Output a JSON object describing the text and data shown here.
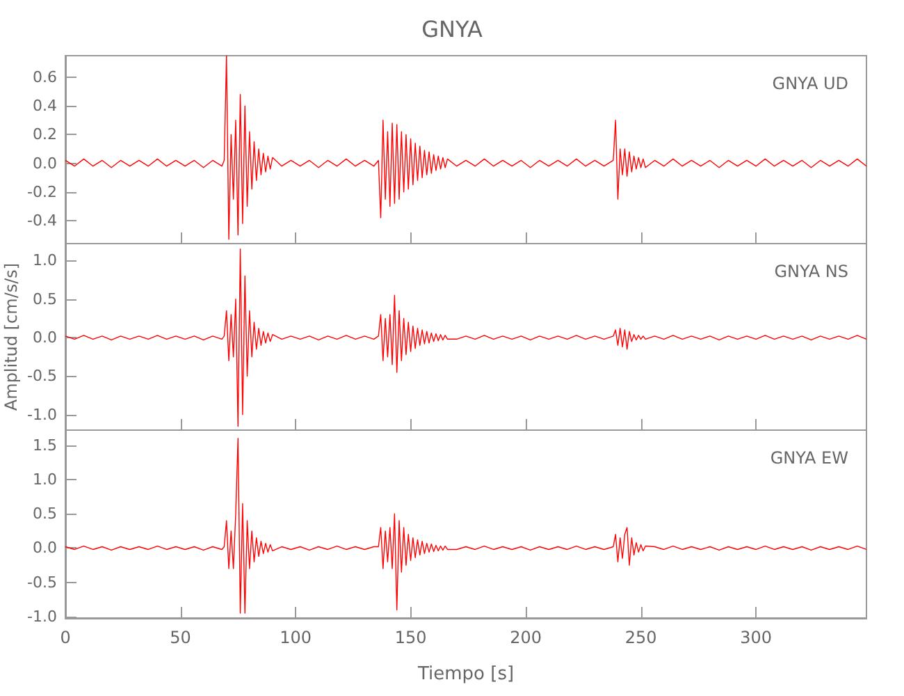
{
  "chart_data": [
    {
      "type": "line",
      "title": "GNYA",
      "annotations": [
        "GNYA UD"
      ],
      "xlim": [
        0,
        348
      ],
      "xticks": [
        0,
        50,
        100,
        150,
        200,
        250,
        300
      ],
      "ylim": [
        -0.56,
        0.75
      ],
      "yticks": [
        -0.4,
        -0.2,
        {
          "value": 0,
          "label": "0.0"
        },
        0.2,
        0.4,
        0.6
      ],
      "tick_labels": "y",
      "x": [
        0,
        4,
        8,
        12,
        16,
        20,
        24,
        28,
        32,
        36,
        40,
        44,
        48,
        52,
        56,
        60,
        64,
        68,
        69,
        70,
        71,
        72,
        73,
        74,
        75,
        76,
        77,
        78,
        79,
        80,
        81,
        82,
        83,
        84,
        85,
        86,
        87,
        88,
        89,
        90,
        94,
        98,
        102,
        106,
        110,
        114,
        118,
        122,
        126,
        130,
        134,
        136,
        137,
        138,
        139,
        140,
        141,
        142,
        143,
        144,
        145,
        146,
        147,
        148,
        149,
        150,
        151,
        152,
        153,
        154,
        155,
        156,
        157,
        158,
        159,
        160,
        161,
        162,
        163,
        164,
        165,
        166,
        170,
        174,
        178,
        182,
        186,
        190,
        194,
        198,
        202,
        206,
        210,
        214,
        218,
        222,
        226,
        230,
        234,
        238,
        239,
        240,
        241,
        242,
        243,
        244,
        245,
        246,
        247,
        248,
        249,
        250,
        251,
        252,
        256,
        260,
        264,
        268,
        272,
        276,
        280,
        284,
        288,
        292,
        296,
        300,
        304,
        308,
        312,
        316,
        320,
        324,
        328,
        332,
        336,
        340,
        344,
        348
      ],
      "series": [
        {
          "color": "#ff0000",
          "values": [
            0.02,
            -0.02,
            0.03,
            -0.02,
            0.02,
            -0.03,
            0.02,
            -0.02,
            0.02,
            -0.02,
            0.03,
            -0.02,
            0.02,
            -0.02,
            0.02,
            -0.03,
            0.02,
            -0.02,
            0.02,
            0.75,
            -0.53,
            0.2,
            -0.25,
            0.3,
            -0.5,
            0.48,
            -0.42,
            0.4,
            -0.3,
            0.22,
            -0.18,
            0.15,
            -0.12,
            0.1,
            -0.08,
            0.07,
            -0.06,
            0.05,
            -0.04,
            0.04,
            -0.02,
            0.02,
            -0.02,
            0.02,
            -0.03,
            0.02,
            -0.02,
            0.03,
            -0.02,
            0.02,
            -0.02,
            0.02,
            -0.38,
            0.3,
            -0.25,
            0.22,
            -0.3,
            0.28,
            -0.28,
            0.27,
            -0.25,
            0.22,
            -0.2,
            0.2,
            -0.18,
            0.17,
            -0.15,
            0.14,
            -0.12,
            0.12,
            -0.1,
            0.09,
            -0.08,
            0.08,
            -0.07,
            0.06,
            -0.05,
            0.05,
            -0.04,
            0.04,
            -0.03,
            0.03,
            -0.02,
            0.02,
            -0.02,
            0.03,
            -0.02,
            0.02,
            -0.02,
            0.02,
            -0.03,
            0.02,
            -0.02,
            0.02,
            -0.02,
            0.03,
            -0.02,
            0.02,
            -0.02,
            0.02,
            0.3,
            -0.25,
            0.1,
            -0.08,
            0.1,
            -0.09,
            0.08,
            -0.06,
            0.05,
            -0.04,
            0.04,
            -0.03,
            0.03,
            -0.03,
            0.02,
            -0.02,
            0.03,
            -0.02,
            0.02,
            -0.02,
            0.02,
            -0.03,
            0.02,
            -0.02,
            0.02,
            -0.02,
            0.03,
            -0.02,
            0.02,
            -0.02,
            0.02,
            -0.03,
            0.02,
            -0.02,
            0.02,
            -0.02,
            0.03,
            -0.02
          ]
        }
      ]
    },
    {
      "type": "line",
      "ylabel": "Amplitud [cm/s/s]",
      "annotations": [
        "GNYA NS"
      ],
      "xlim": [
        0,
        348
      ],
      "xticks": [
        0,
        50,
        100,
        150,
        200,
        250,
        300
      ],
      "ylim": [
        -1.2,
        1.22
      ],
      "yticks": [
        {
          "value": -1,
          "label": "-1.0"
        },
        -0.5,
        {
          "value": 0,
          "label": "0.0"
        },
        0.5,
        {
          "value": 1,
          "label": "1.0"
        }
      ],
      "tick_labels": "y",
      "x": [
        0,
        4,
        8,
        12,
        16,
        20,
        24,
        28,
        32,
        36,
        40,
        44,
        48,
        52,
        56,
        60,
        64,
        68,
        69,
        70,
        71,
        72,
        73,
        74,
        75,
        76,
        77,
        78,
        79,
        80,
        81,
        82,
        83,
        84,
        85,
        86,
        87,
        88,
        89,
        90,
        94,
        98,
        102,
        106,
        110,
        114,
        118,
        122,
        126,
        130,
        134,
        136,
        137,
        138,
        139,
        140,
        141,
        142,
        143,
        144,
        145,
        146,
        147,
        148,
        149,
        150,
        151,
        152,
        153,
        154,
        155,
        156,
        157,
        158,
        159,
        160,
        161,
        162,
        163,
        164,
        165,
        166,
        170,
        174,
        178,
        182,
        186,
        190,
        194,
        198,
        202,
        206,
        210,
        214,
        218,
        222,
        226,
        230,
        234,
        238,
        239,
        240,
        241,
        242,
        243,
        244,
        245,
        246,
        247,
        248,
        249,
        250,
        251,
        252,
        256,
        260,
        264,
        268,
        272,
        276,
        280,
        284,
        288,
        292,
        296,
        300,
        304,
        308,
        312,
        316,
        320,
        324,
        328,
        332,
        336,
        340,
        344,
        348
      ],
      "series": [
        {
          "color": "#ff0000",
          "values": [
            0.02,
            -0.02,
            0.03,
            -0.02,
            0.02,
            -0.03,
            0.02,
            -0.02,
            0.02,
            -0.02,
            0.03,
            -0.02,
            0.02,
            -0.02,
            0.02,
            -0.03,
            0.02,
            -0.02,
            0.02,
            0.35,
            -0.3,
            0.3,
            -0.25,
            0.5,
            -1.15,
            1.15,
            -1.0,
            0.8,
            -0.5,
            0.35,
            -0.25,
            0.2,
            -0.15,
            0.12,
            -0.1,
            0.08,
            -0.07,
            0.06,
            -0.05,
            0.04,
            -0.02,
            0.02,
            -0.02,
            0.02,
            -0.03,
            0.02,
            -0.02,
            0.03,
            -0.02,
            0.02,
            -0.02,
            0.02,
            0.3,
            -0.3,
            0.25,
            -0.25,
            0.3,
            -0.35,
            0.55,
            -0.45,
            0.35,
            -0.3,
            0.25,
            -0.22,
            0.2,
            -0.18,
            0.15,
            -0.14,
            0.12,
            -0.1,
            0.1,
            -0.08,
            0.08,
            -0.07,
            0.06,
            -0.05,
            0.05,
            -0.04,
            0.04,
            -0.03,
            0.03,
            -0.02,
            -0.02,
            0.02,
            -0.02,
            0.03,
            -0.02,
            0.02,
            -0.02,
            0.02,
            -0.03,
            0.02,
            -0.02,
            0.02,
            -0.02,
            0.03,
            -0.02,
            0.02,
            -0.02,
            0.02,
            0.1,
            -0.1,
            0.12,
            -0.12,
            0.1,
            -0.15,
            0.08,
            -0.05,
            0.04,
            -0.03,
            0.03,
            -0.02,
            0.02,
            -0.02,
            0.02,
            -0.02,
            0.03,
            -0.02,
            0.02,
            -0.02,
            0.02,
            -0.03,
            0.02,
            -0.02,
            0.02,
            -0.02,
            0.03,
            -0.02,
            0.02,
            -0.02,
            0.02,
            -0.03,
            0.02,
            -0.02,
            0.02,
            -0.02,
            0.03,
            -0.02
          ]
        }
      ]
    },
    {
      "type": "line",
      "xlabel": "Tiempo [s]",
      "annotations": [
        "GNYA EW"
      ],
      "xlim": [
        0,
        348
      ],
      "xticks": [
        0,
        50,
        100,
        150,
        200,
        250,
        300
      ],
      "ylim": [
        -1.02,
        1.72
      ],
      "yticks": [
        {
          "value": -1,
          "label": "-1.0"
        },
        -0.5,
        {
          "value": 0,
          "label": "0.0"
        },
        0.5,
        {
          "value": 1,
          "label": "1.0"
        },
        1.5
      ],
      "x": [
        0,
        4,
        8,
        12,
        16,
        20,
        24,
        28,
        32,
        36,
        40,
        44,
        48,
        52,
        56,
        60,
        64,
        68,
        69,
        70,
        71,
        72,
        73,
        74,
        75,
        76,
        77,
        78,
        79,
        80,
        81,
        82,
        83,
        84,
        85,
        86,
        87,
        88,
        89,
        90,
        94,
        98,
        102,
        106,
        110,
        114,
        118,
        122,
        126,
        130,
        134,
        136,
        137,
        138,
        139,
        140,
        141,
        142,
        143,
        144,
        145,
        146,
        147,
        148,
        149,
        150,
        151,
        152,
        153,
        154,
        155,
        156,
        157,
        158,
        159,
        160,
        161,
        162,
        163,
        164,
        165,
        166,
        170,
        174,
        178,
        182,
        186,
        190,
        194,
        198,
        202,
        206,
        210,
        214,
        218,
        222,
        226,
        230,
        234,
        238,
        239,
        240,
        241,
        242,
        243,
        244,
        245,
        246,
        247,
        248,
        249,
        250,
        251,
        252,
        256,
        260,
        264,
        268,
        272,
        276,
        280,
        284,
        288,
        292,
        296,
        300,
        304,
        308,
        312,
        316,
        320,
        324,
        328,
        332,
        336,
        340,
        344,
        348
      ],
      "series": [
        {
          "color": "#ff0000",
          "values": [
            0.02,
            -0.02,
            0.03,
            -0.02,
            0.02,
            -0.03,
            0.02,
            -0.02,
            0.02,
            -0.02,
            0.03,
            -0.02,
            0.02,
            -0.02,
            0.02,
            -0.03,
            0.02,
            -0.02,
            0.02,
            0.4,
            -0.3,
            0.25,
            -0.3,
            0.5,
            1.6,
            -0.95,
            0.65,
            -0.95,
            0.4,
            -0.3,
            0.25,
            -0.2,
            0.15,
            -0.12,
            0.1,
            -0.08,
            0.07,
            -0.06,
            0.05,
            -0.04,
            0.02,
            -0.02,
            0.02,
            -0.03,
            0.02,
            -0.02,
            0.03,
            -0.02,
            0.02,
            -0.02,
            0.02,
            0.02,
            0.3,
            -0.3,
            0.25,
            -0.2,
            0.3,
            -0.3,
            0.5,
            -0.9,
            0.4,
            -0.35,
            0.3,
            -0.25,
            0.2,
            -0.18,
            0.15,
            -0.14,
            0.12,
            -0.1,
            0.1,
            -0.08,
            0.07,
            -0.06,
            0.06,
            -0.05,
            0.04,
            -0.04,
            0.03,
            -0.03,
            0.03,
            -0.02,
            -0.02,
            0.02,
            -0.02,
            0.03,
            -0.02,
            0.02,
            -0.02,
            0.02,
            -0.03,
            0.02,
            -0.02,
            0.02,
            -0.02,
            0.03,
            -0.02,
            0.02,
            -0.02,
            0.02,
            0.2,
            -0.2,
            0.15,
            -0.15,
            0.2,
            0.3,
            -0.25,
            0.15,
            -0.1,
            0.08,
            -0.06,
            0.05,
            -0.04,
            0.03,
            0.02,
            -0.02,
            0.03,
            -0.02,
            0.02,
            -0.02,
            0.02,
            -0.03,
            0.02,
            -0.02,
            0.02,
            -0.02,
            0.03,
            -0.02,
            0.02,
            -0.02,
            0.02,
            -0.03,
            0.02,
            -0.02,
            0.02,
            -0.02,
            0.03,
            -0.02
          ]
        }
      ]
    }
  ]
}
